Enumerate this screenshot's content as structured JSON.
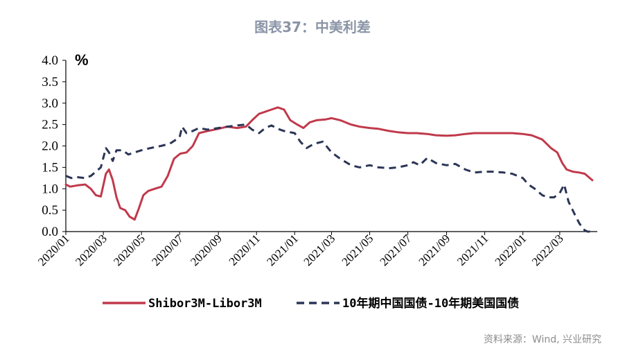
{
  "chart_data": {
    "type": "line",
    "title": "图表37：中美利差",
    "ylabel": "%",
    "ylim": [
      0,
      4
    ],
    "yticks": [
      "0.0",
      "0.5",
      "1.0",
      "1.5",
      "2.0",
      "2.5",
      "3.0",
      "3.5",
      "4.0"
    ],
    "xlim": [
      "2020-01-01",
      "2022-04-30"
    ],
    "xticks": [
      {
        "date": "2020-01-01",
        "label": "2020/01"
      },
      {
        "date": "2020-03-01",
        "label": "2020/03"
      },
      {
        "date": "2020-05-01",
        "label": "2020/05"
      },
      {
        "date": "2020-07-01",
        "label": "2020/07"
      },
      {
        "date": "2020-09-01",
        "label": "2020/09"
      },
      {
        "date": "2020-11-01",
        "label": "2020/11"
      },
      {
        "date": "2021-01-01",
        "label": "2021/01"
      },
      {
        "date": "2021-03-01",
        "label": "2021/03"
      },
      {
        "date": "2021-05-01",
        "label": "2021/05"
      },
      {
        "date": "2021-07-01",
        "label": "2021/07"
      },
      {
        "date": "2021-09-01",
        "label": "2021/09"
      },
      {
        "date": "2021-11-01",
        "label": "2021/11"
      },
      {
        "date": "2022-01-01",
        "label": "2022/01"
      },
      {
        "date": "2022-03-01",
        "label": "2022/03"
      }
    ],
    "grid": false,
    "legend_position": "bottom",
    "series": [
      {
        "name": "Shibor3M-Libor3M",
        "color": "#c0394b",
        "style": "solid",
        "points": [
          [
            "2020-01-01",
            1.1
          ],
          [
            "2020-01-08",
            1.05
          ],
          [
            "2020-01-20",
            1.08
          ],
          [
            "2020-02-01",
            1.1
          ],
          [
            "2020-02-10",
            1.0
          ],
          [
            "2020-02-18",
            0.85
          ],
          [
            "2020-02-26",
            0.82
          ],
          [
            "2020-03-05",
            1.35
          ],
          [
            "2020-03-10",
            1.45
          ],
          [
            "2020-03-16",
            1.2
          ],
          [
            "2020-03-22",
            0.8
          ],
          [
            "2020-03-28",
            0.55
          ],
          [
            "2020-04-05",
            0.5
          ],
          [
            "2020-04-12",
            0.35
          ],
          [
            "2020-04-20",
            0.28
          ],
          [
            "2020-04-27",
            0.55
          ],
          [
            "2020-05-04",
            0.85
          ],
          [
            "2020-05-12",
            0.95
          ],
          [
            "2020-05-22",
            1.0
          ],
          [
            "2020-06-02",
            1.05
          ],
          [
            "2020-06-12",
            1.3
          ],
          [
            "2020-06-22",
            1.7
          ],
          [
            "2020-07-02",
            1.82
          ],
          [
            "2020-07-12",
            1.85
          ],
          [
            "2020-07-22",
            2.0
          ],
          [
            "2020-08-01",
            2.3
          ],
          [
            "2020-08-15",
            2.35
          ],
          [
            "2020-09-01",
            2.4
          ],
          [
            "2020-09-15",
            2.45
          ],
          [
            "2020-10-01",
            2.42
          ],
          [
            "2020-10-15",
            2.45
          ],
          [
            "2020-10-25",
            2.6
          ],
          [
            "2020-11-05",
            2.75
          ],
          [
            "2020-11-15",
            2.8
          ],
          [
            "2020-11-25",
            2.85
          ],
          [
            "2020-12-05",
            2.9
          ],
          [
            "2020-12-15",
            2.85
          ],
          [
            "2020-12-25",
            2.6
          ],
          [
            "2021-01-05",
            2.5
          ],
          [
            "2021-01-15",
            2.42
          ],
          [
            "2021-01-25",
            2.55
          ],
          [
            "2021-02-05",
            2.6
          ],
          [
            "2021-02-20",
            2.62
          ],
          [
            "2021-03-01",
            2.65
          ],
          [
            "2021-03-15",
            2.6
          ],
          [
            "2021-04-01",
            2.5
          ],
          [
            "2021-04-15",
            2.45
          ],
          [
            "2021-05-01",
            2.42
          ],
          [
            "2021-05-15",
            2.4
          ],
          [
            "2021-06-01",
            2.35
          ],
          [
            "2021-06-15",
            2.32
          ],
          [
            "2021-07-01",
            2.3
          ],
          [
            "2021-07-15",
            2.3
          ],
          [
            "2021-08-01",
            2.28
          ],
          [
            "2021-08-15",
            2.25
          ],
          [
            "2021-09-01",
            2.24
          ],
          [
            "2021-09-15",
            2.25
          ],
          [
            "2021-10-01",
            2.28
          ],
          [
            "2021-10-15",
            2.3
          ],
          [
            "2021-11-01",
            2.3
          ],
          [
            "2021-11-15",
            2.3
          ],
          [
            "2021-12-01",
            2.3
          ],
          [
            "2021-12-15",
            2.3
          ],
          [
            "2022-01-01",
            2.28
          ],
          [
            "2022-01-15",
            2.25
          ],
          [
            "2022-02-01",
            2.15
          ],
          [
            "2022-02-15",
            1.95
          ],
          [
            "2022-02-25",
            1.85
          ],
          [
            "2022-03-05",
            1.6
          ],
          [
            "2022-03-12",
            1.45
          ],
          [
            "2022-03-22",
            1.4
          ],
          [
            "2022-04-01",
            1.38
          ],
          [
            "2022-04-10",
            1.35
          ],
          [
            "2022-04-18",
            1.25
          ],
          [
            "2022-04-22",
            1.2
          ]
        ]
      },
      {
        "name": "10年期中国国债-10年期美国国债",
        "color": "#2b3556",
        "style": "dashed",
        "points": [
          [
            "2020-01-01",
            1.3
          ],
          [
            "2020-01-10",
            1.25
          ],
          [
            "2020-01-20",
            1.27
          ],
          [
            "2020-02-01",
            1.25
          ],
          [
            "2020-02-10",
            1.3
          ],
          [
            "2020-02-18",
            1.4
          ],
          [
            "2020-02-26",
            1.5
          ],
          [
            "2020-03-05",
            1.95
          ],
          [
            "2020-03-10",
            1.85
          ],
          [
            "2020-03-16",
            1.65
          ],
          [
            "2020-03-22",
            1.9
          ],
          [
            "2020-04-01",
            1.9
          ],
          [
            "2020-04-10",
            1.8
          ],
          [
            "2020-04-20",
            1.85
          ],
          [
            "2020-05-01",
            1.9
          ],
          [
            "2020-05-15",
            1.95
          ],
          [
            "2020-06-01",
            2.0
          ],
          [
            "2020-06-15",
            2.05
          ],
          [
            "2020-07-01",
            2.2
          ],
          [
            "2020-07-05",
            2.45
          ],
          [
            "2020-07-12",
            2.3
          ],
          [
            "2020-07-22",
            2.35
          ],
          [
            "2020-08-01",
            2.42
          ],
          [
            "2020-08-15",
            2.38
          ],
          [
            "2020-09-01",
            2.42
          ],
          [
            "2020-09-15",
            2.45
          ],
          [
            "2020-10-01",
            2.48
          ],
          [
            "2020-10-15",
            2.5
          ],
          [
            "2020-10-25",
            2.38
          ],
          [
            "2020-11-05",
            2.3
          ],
          [
            "2020-11-15",
            2.42
          ],
          [
            "2020-11-25",
            2.48
          ],
          [
            "2020-12-05",
            2.4
          ],
          [
            "2020-12-15",
            2.35
          ],
          [
            "2021-01-01",
            2.3
          ],
          [
            "2021-01-10",
            2.1
          ],
          [
            "2021-01-20",
            1.95
          ],
          [
            "2021-02-01",
            2.05
          ],
          [
            "2021-02-15",
            2.1
          ],
          [
            "2021-03-01",
            1.85
          ],
          [
            "2021-03-15",
            1.7
          ],
          [
            "2021-04-01",
            1.55
          ],
          [
            "2021-04-15",
            1.5
          ],
          [
            "2021-05-01",
            1.55
          ],
          [
            "2021-05-15",
            1.5
          ],
          [
            "2021-06-01",
            1.48
          ],
          [
            "2021-06-15",
            1.5
          ],
          [
            "2021-07-01",
            1.55
          ],
          [
            "2021-07-10",
            1.62
          ],
          [
            "2021-07-20",
            1.55
          ],
          [
            "2021-08-01",
            1.72
          ],
          [
            "2021-08-15",
            1.6
          ],
          [
            "2021-09-01",
            1.55
          ],
          [
            "2021-09-15",
            1.58
          ],
          [
            "2021-10-01",
            1.45
          ],
          [
            "2021-10-15",
            1.38
          ],
          [
            "2021-11-01",
            1.4
          ],
          [
            "2021-11-15",
            1.4
          ],
          [
            "2021-12-01",
            1.38
          ],
          [
            "2021-12-15",
            1.35
          ],
          [
            "2022-01-01",
            1.25
          ],
          [
            "2022-01-10",
            1.1
          ],
          [
            "2022-01-20",
            1.0
          ],
          [
            "2022-02-01",
            0.85
          ],
          [
            "2022-02-10",
            0.8
          ],
          [
            "2022-02-20",
            0.8
          ],
          [
            "2022-03-01",
            0.9
          ],
          [
            "2022-03-08",
            1.1
          ],
          [
            "2022-03-15",
            0.7
          ],
          [
            "2022-03-25",
            0.4
          ],
          [
            "2022-04-01",
            0.2
          ],
          [
            "2022-04-08",
            0.05
          ],
          [
            "2022-04-14",
            0.0
          ],
          [
            "2022-04-22",
            0.0
          ]
        ]
      }
    ],
    "source": "资料来源：Wind, 兴业研究"
  }
}
